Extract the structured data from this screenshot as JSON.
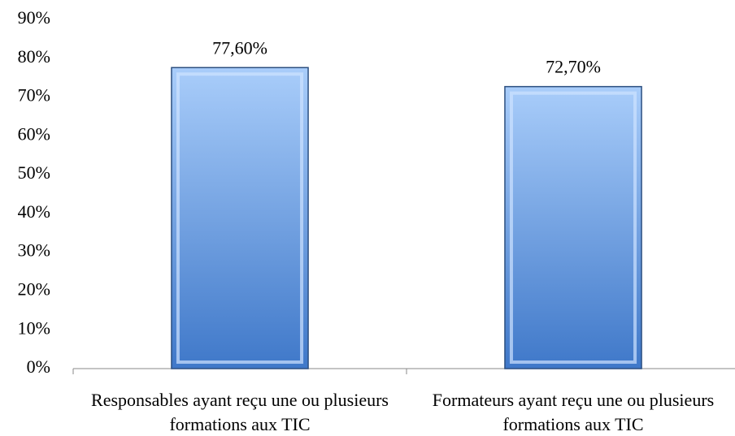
{
  "chart_data": {
    "type": "bar",
    "categories": [
      "Responsables ayant reçu une ou plusieurs formations aux TIC",
      "Formateurs ayant reçu une ou plusieurs formations aux TIC"
    ],
    "values": [
      77.6,
      72.7
    ],
    "value_labels": [
      "77,60%",
      "72,70%"
    ],
    "color": "#4f86d6",
    "ylim": [
      0,
      90
    ],
    "yticks": [
      {
        "value": 0,
        "label": "0%"
      },
      {
        "value": 10,
        "label": "10%"
      },
      {
        "value": 20,
        "label": "20%"
      },
      {
        "value": 30,
        "label": "30%"
      },
      {
        "value": 40,
        "label": "40%"
      },
      {
        "value": 50,
        "label": "50%"
      },
      {
        "value": 60,
        "label": "60%"
      },
      {
        "value": 70,
        "label": "70%"
      },
      {
        "value": 80,
        "label": "80%"
      },
      {
        "value": 90,
        "label": "90%"
      }
    ],
    "grid": false
  }
}
